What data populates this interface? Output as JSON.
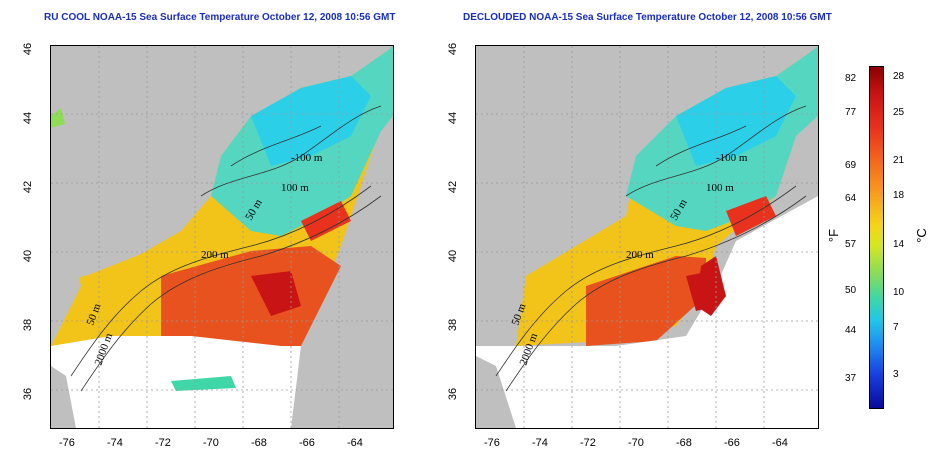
{
  "titles": {
    "left": "RU COOL NOAA-15 Sea Surface Temperature October 12, 2008 10:56 GMT",
    "right": "DECLOUDED NOAA-15 Sea Surface Temperature October 12, 2008 10:56 GMT"
  },
  "axes": {
    "lon_ticks": [
      "-76",
      "-74",
      "-72",
      "-70",
      "-68",
      "-66",
      "-64"
    ],
    "lat_ticks": [
      "46",
      "44",
      "42",
      "40",
      "38",
      "36"
    ]
  },
  "contours": {
    "m100": "100 m",
    "m100b": "-100 m",
    "m50": "50 m",
    "m200": "200 m",
    "m2000": "2000 m"
  },
  "colorbar": {
    "unit_f": "°F",
    "unit_c": "°C",
    "f_ticks": [
      "82",
      "77",
      "69",
      "64",
      "57",
      "50",
      "44",
      "37"
    ],
    "c_ticks": [
      "28",
      "25",
      "21",
      "18",
      "14",
      "10",
      "7",
      "3"
    ],
    "colors": [
      "#8b0000",
      "#c81414",
      "#f46a1e",
      "#f5d21a",
      "#8fdc55",
      "#22c8e6",
      "#1840e0",
      "#0a0a9a"
    ]
  },
  "colors": {
    "title": "#1a2fb8",
    "land": "#bfbfbf",
    "cloud": "#ffffff"
  }
}
